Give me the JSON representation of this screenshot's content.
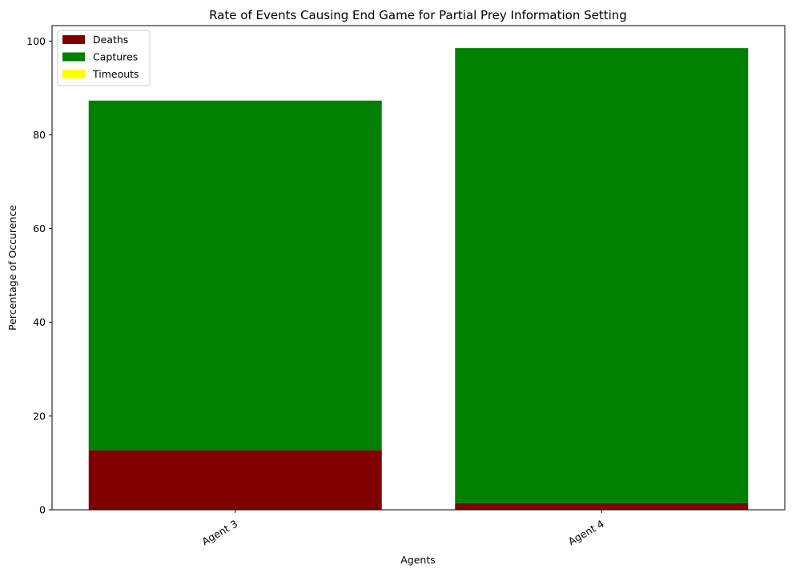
{
  "chart_data": {
    "type": "bar",
    "stacked": true,
    "title": "Rate of Events Causing End Game for Partial Prey Information Setting",
    "xlabel": "Agents",
    "ylabel": "Percentage of Occurence",
    "categories": [
      "Agent 3",
      "Agent 4"
    ],
    "series": [
      {
        "name": "Deaths",
        "color": "#800000",
        "values": [
          12.7,
          1.4
        ]
      },
      {
        "name": "Captures",
        "color": "#008000",
        "values": [
          74.6,
          97.1
        ]
      },
      {
        "name": "Timeouts",
        "color": "#ffff00",
        "values": [
          0,
          0
        ]
      }
    ],
    "ylim": [
      0,
      103.3
    ],
    "yticks": [
      0,
      20,
      40,
      60,
      80,
      100
    ],
    "xtick_rotation": 30,
    "grid": false,
    "legend_position": "top-left"
  }
}
